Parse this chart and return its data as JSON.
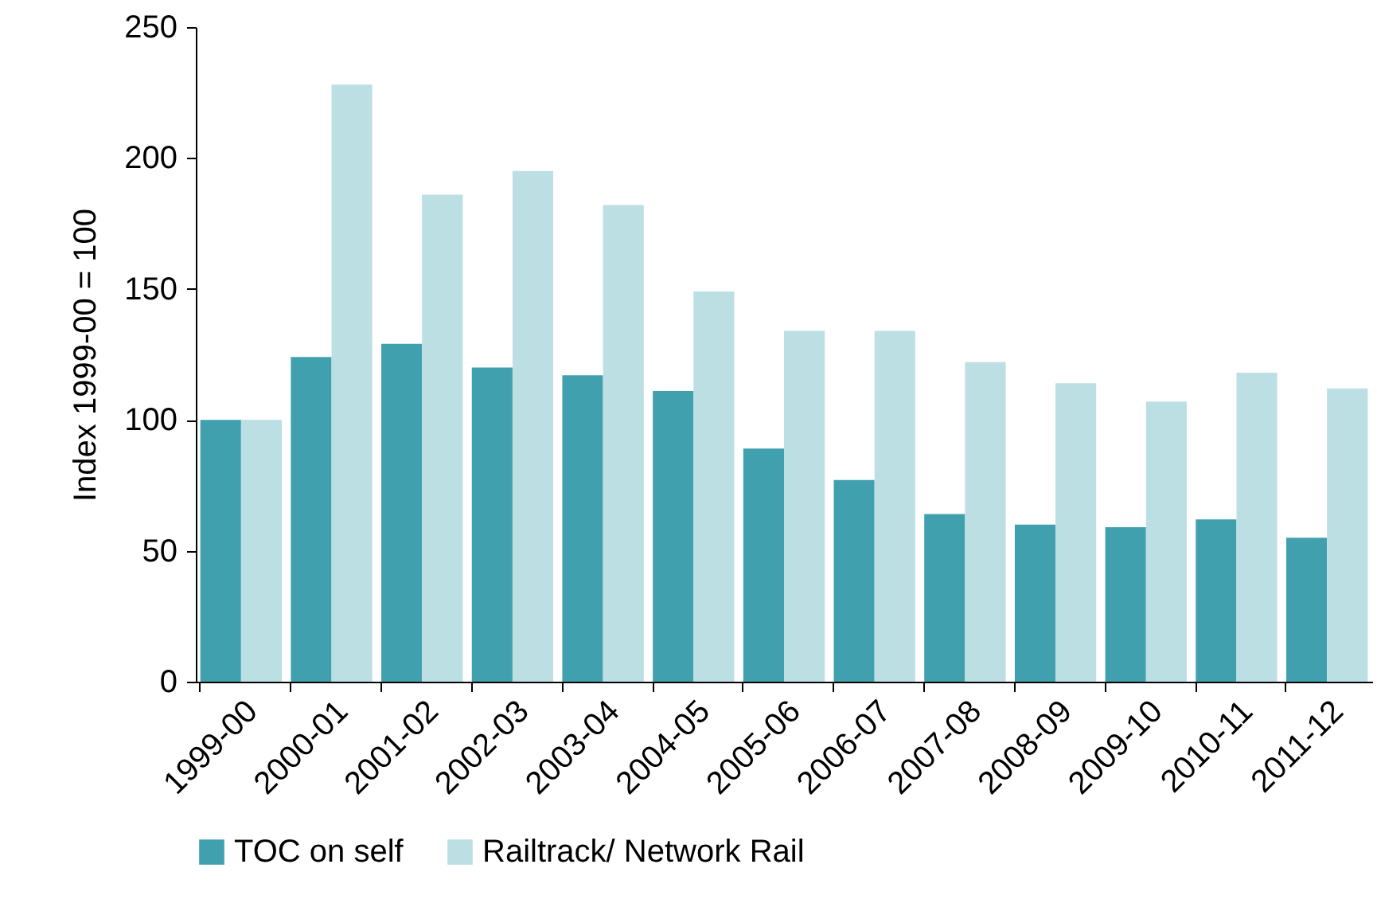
{
  "chart_data": {
    "type": "bar",
    "ylabel": "Index 1999-00 = 100",
    "categories": [
      "1999-00",
      "2000-01",
      "2001-02",
      "2002-03",
      "2003-04",
      "2004-05",
      "2005-06",
      "2006-07",
      "2007-08",
      "2008-09",
      "2009-10",
      "2010-11",
      "2011-12"
    ],
    "series": [
      {
        "name": "TOC on self",
        "color": "#41a0ae",
        "values": [
          100,
          124,
          129,
          120,
          117,
          111,
          89,
          77,
          64,
          60,
          59,
          62,
          55
        ]
      },
      {
        "name": "Railtrack/ Network Rail",
        "color": "#bcdfe4",
        "values": [
          100,
          228,
          186,
          195,
          182,
          149,
          134,
          134,
          122,
          114,
          107,
          118,
          112
        ]
      }
    ],
    "ylim": [
      0,
      250
    ],
    "yticks": [
      0,
      50,
      100,
      150,
      200,
      250
    ],
    "grid": false,
    "legend": "bottom"
  }
}
